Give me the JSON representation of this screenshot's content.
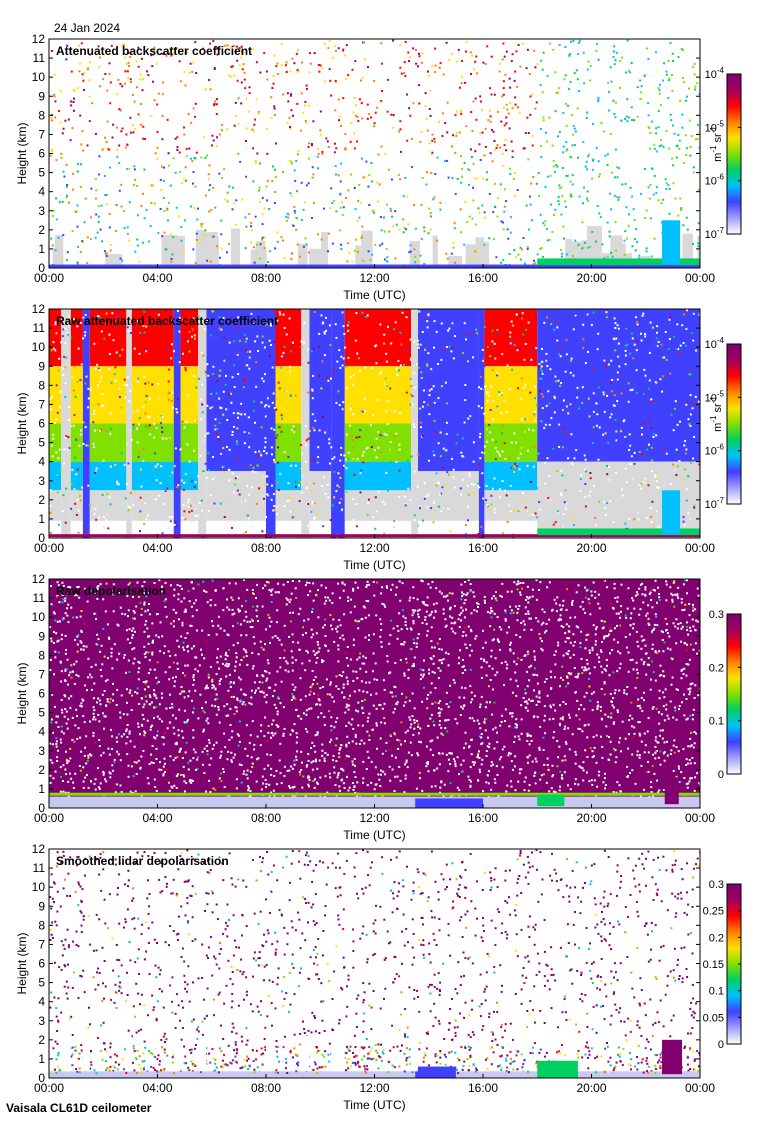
{
  "date": "24 Jan 2024",
  "footer": "Vaisala CL61D ceilometer",
  "colors": {
    "background_gray": "#d9d9d9",
    "rainbow": [
      "#e8e8f8",
      "#4040ff",
      "#00c0ff",
      "#00d060",
      "#80e000",
      "#ffe000",
      "#ff8000",
      "#ff0000",
      "#a00060",
      "#800070"
    ]
  },
  "chart_data": [
    {
      "type": "heatmap",
      "title": "Attenuated backscatter coefficient",
      "xlabel": "Time (UTC)",
      "ylabel": "Height (km)",
      "xlim": [
        "00:00",
        "24:00"
      ],
      "ylim": [
        0,
        12
      ],
      "x_ticks": [
        "00:00",
        "04:00",
        "08:00",
        "12:00",
        "16:00",
        "20:00",
        "00:00"
      ],
      "y_ticks": [
        "0",
        "1",
        "2",
        "3",
        "4",
        "5",
        "6",
        "7",
        "8",
        "9",
        "10",
        "11",
        "12"
      ],
      "colorbar": {
        "scale": "log",
        "range": [
          1e-07,
          0.0001
        ],
        "ticks": [
          {
            "base": "10",
            "exp": "-4"
          },
          {
            "base": "10",
            "exp": "-5"
          },
          {
            "base": "10",
            "exp": "-6"
          },
          {
            "base": "10",
            "exp": "-7"
          }
        ],
        "unit": {
          "a": "m",
          "a_exp": "-1",
          "b": " sr",
          "b_exp": "-1"
        }
      }
    },
    {
      "type": "heatmap",
      "title": "Raw attenuated backscatter coefficient",
      "xlabel": "Time (UTC)",
      "ylabel": "Height (km)",
      "xlim": [
        "00:00",
        "24:00"
      ],
      "ylim": [
        0,
        12
      ],
      "x_ticks": [
        "00:00",
        "04:00",
        "08:00",
        "12:00",
        "16:00",
        "20:00",
        "00:00"
      ],
      "y_ticks": [
        "0",
        "1",
        "2",
        "3",
        "4",
        "5",
        "6",
        "7",
        "8",
        "9",
        "10",
        "11",
        "12"
      ],
      "colorbar": {
        "scale": "log",
        "range": [
          1e-07,
          0.0001
        ],
        "ticks": [
          {
            "base": "10",
            "exp": "-4"
          },
          {
            "base": "10",
            "exp": "-5"
          },
          {
            "base": "10",
            "exp": "-6"
          },
          {
            "base": "10",
            "exp": "-7"
          }
        ],
        "unit": {
          "a": "m",
          "a_exp": "-1",
          "b": " sr",
          "b_exp": "-1"
        }
      }
    },
    {
      "type": "heatmap",
      "title": "Raw depolarisation",
      "xlabel": "Time (UTC)",
      "ylabel": "Height (km)",
      "xlim": [
        "00:00",
        "24:00"
      ],
      "ylim": [
        0,
        12
      ],
      "x_ticks": [
        "00:00",
        "04:00",
        "08:00",
        "12:00",
        "16:00",
        "20:00",
        "00:00"
      ],
      "y_ticks": [
        "0",
        "1",
        "2",
        "3",
        "4",
        "5",
        "6",
        "7",
        "8",
        "9",
        "10",
        "11",
        "12"
      ],
      "colorbar": {
        "scale": "linear",
        "range": [
          0,
          0.3
        ],
        "ticks": [
          {
            "text": "0.3"
          },
          {
            "text": "0.2"
          },
          {
            "text": "0.1"
          },
          {
            "text": "0"
          }
        ]
      }
    },
    {
      "type": "heatmap",
      "title": "Smoothed lidar depolarisation",
      "xlabel": "Time (UTC)",
      "ylabel": "Height (km)",
      "xlim": [
        "00:00",
        "24:00"
      ],
      "ylim": [
        0,
        12
      ],
      "x_ticks": [
        "00:00",
        "04:00",
        "08:00",
        "12:00",
        "16:00",
        "20:00",
        "00:00"
      ],
      "y_ticks": [
        "0",
        "1",
        "2",
        "3",
        "4",
        "5",
        "6",
        "7",
        "8",
        "9",
        "10",
        "11",
        "12"
      ],
      "colorbar": {
        "scale": "linear",
        "range": [
          0,
          0.3
        ],
        "ticks": [
          {
            "text": "0.3"
          },
          {
            "text": "0.25"
          },
          {
            "text": "0.2"
          },
          {
            "text": "0.15"
          },
          {
            "text": "0.1"
          },
          {
            "text": "0.05"
          },
          {
            "text": "0"
          }
        ]
      }
    }
  ]
}
